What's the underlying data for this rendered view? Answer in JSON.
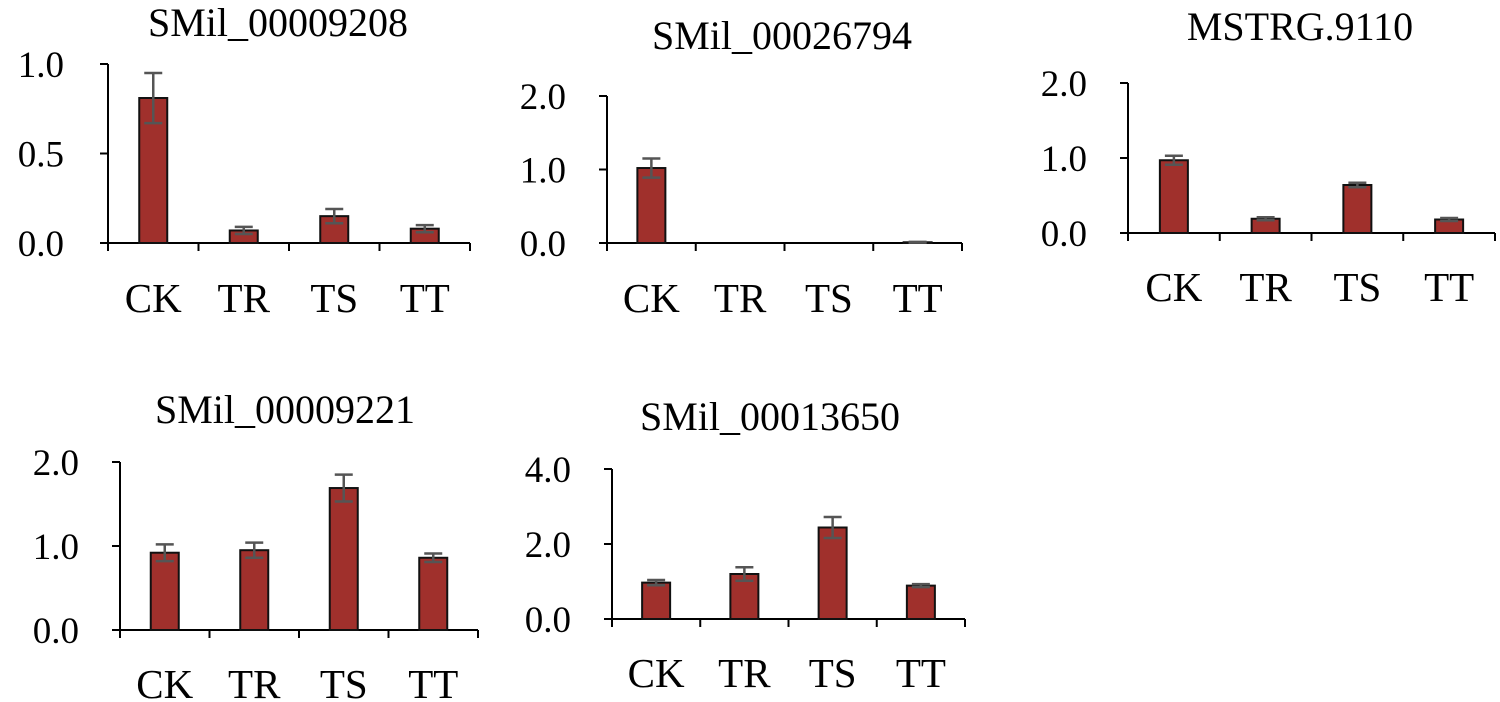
{
  "chart_data": [
    {
      "type": "bar",
      "title": "SMil_00009208",
      "categories": [
        "CK",
        "TR",
        "TS",
        "TT"
      ],
      "values": [
        0.81,
        0.07,
        0.15,
        0.08
      ],
      "errors": [
        0.14,
        0.02,
        0.04,
        0.02
      ],
      "ylim": [
        0,
        1.0
      ],
      "yticks": [
        "0.0",
        "0.5",
        "1.0"
      ],
      "ytick_values": [
        0,
        0.5,
        1.0
      ],
      "xlabel": "",
      "ylabel": "",
      "legend": false,
      "grid": false
    },
    {
      "type": "bar",
      "title": "SMil_00026794",
      "categories": [
        "CK",
        "TR",
        "TS",
        "TT"
      ],
      "values": [
        1.02,
        0.0,
        0.0,
        0.01
      ],
      "errors": [
        0.13,
        0.0,
        0.0,
        0.005
      ],
      "ylim": [
        0,
        2.0
      ],
      "yticks": [
        "0.0",
        "1.0",
        "2.0"
      ],
      "ytick_values": [
        0,
        1.0,
        2.0
      ],
      "xlabel": "",
      "ylabel": "",
      "legend": false,
      "grid": false
    },
    {
      "type": "bar",
      "title": "MSTRG.9110",
      "categories": [
        "CK",
        "TR",
        "TS",
        "TT"
      ],
      "values": [
        0.97,
        0.19,
        0.64,
        0.18
      ],
      "errors": [
        0.06,
        0.02,
        0.03,
        0.02
      ],
      "ylim": [
        0,
        2.0
      ],
      "yticks": [
        "0.0",
        "1.0",
        "2.0"
      ],
      "ytick_values": [
        0,
        1.0,
        2.0
      ],
      "xlabel": "",
      "ylabel": "",
      "legend": false,
      "grid": false
    },
    {
      "type": "bar",
      "title": "SMil_00009221",
      "categories": [
        "CK",
        "TR",
        "TS",
        "TT"
      ],
      "values": [
        0.92,
        0.95,
        1.69,
        0.86
      ],
      "errors": [
        0.1,
        0.09,
        0.16,
        0.05
      ],
      "ylim": [
        0,
        2.0
      ],
      "yticks": [
        "0.0",
        "1.0",
        "2.0"
      ],
      "ytick_values": [
        0,
        1.0,
        2.0
      ],
      "xlabel": "",
      "ylabel": "",
      "legend": false,
      "grid": false
    },
    {
      "type": "bar",
      "title": "SMil_00013650",
      "categories": [
        "CK",
        "TR",
        "TS",
        "TT"
      ],
      "values": [
        0.97,
        1.2,
        2.44,
        0.89
      ],
      "errors": [
        0.07,
        0.18,
        0.28,
        0.04
      ],
      "ylim": [
        0,
        4.0
      ],
      "yticks": [
        "0.0",
        "2.0",
        "4.0"
      ],
      "ytick_values": [
        0,
        2.0,
        4.0
      ],
      "xlabel": "",
      "ylabel": "",
      "legend": false,
      "grid": false
    }
  ],
  "colors": {
    "bar_fill": "#a0302c",
    "bar_edge": "#111111",
    "error_bar": "#555555"
  }
}
